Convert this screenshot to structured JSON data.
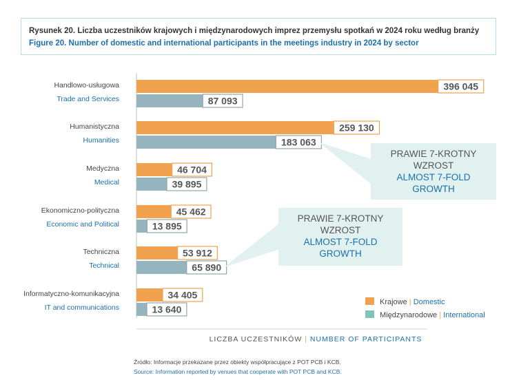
{
  "header": {
    "title_pl": "Rysunek 20. Liczba uczestników krajowych i międzynarodowych imprez przemysłu spotkań w 2024 roku według branży",
    "title_en": "Figure 20. Number of domestic and international participants in the meetings industry in 2024 by sector"
  },
  "colors": {
    "domestic": "#f0a24e",
    "international": "#96b4bd",
    "domestic_label_border": "#f0a24e",
    "international_label_border": "#8fa7ae",
    "callout_bg": "#e1f1ef",
    "accent_blue": "#1b6fae",
    "text_gray": "#444444"
  },
  "chart_data": {
    "type": "bar",
    "orientation": "horizontal",
    "categories": [
      {
        "pl": "Handlowo-usługowa",
        "en": "Trade and Services"
      },
      {
        "pl": "Humanistyczna",
        "en": "Humanities"
      },
      {
        "pl": "Medyczna",
        "en": "Medical"
      },
      {
        "pl": "Ekonomiczno-polityczna",
        "en": "Economic and Political"
      },
      {
        "pl": "Techniczna",
        "en": "Technical"
      },
      {
        "pl": "Informatyczno-komunikacyjna",
        "en": "IT and communications"
      }
    ],
    "series": [
      {
        "name_pl": "Krajowe",
        "name_en": "Domestic",
        "values": [
          396045,
          259130,
          46704,
          45462,
          53912,
          34405
        ],
        "labels": [
          "396 045",
          "259 130",
          "46 704",
          "45 462",
          "53 912",
          "34 405"
        ]
      },
      {
        "name_pl": "Międzynarodowe",
        "name_en": "International",
        "values": [
          87093,
          183063,
          39895,
          13895,
          65890,
          13640
        ],
        "labels": [
          "87 093",
          "183 063",
          "39 895",
          "13 895",
          "65 890",
          "13 640"
        ]
      }
    ],
    "xlim": [
      0,
      400000
    ],
    "xlabel_pl": "LICZBA UCZESTNIKÓW",
    "xlabel_en": "NUMBER OF PARTICIPANTS",
    "legend_position": "bottom-right",
    "annotations": [
      {
        "target_category": 1,
        "target_series": 1,
        "line1": "PRAWIE 7-KROTNY",
        "line2": "WZROST",
        "line3": "ALMOST 7-FOLD",
        "line4": "GROWTH"
      },
      {
        "target_category": 4,
        "target_series": 1,
        "line1": "PRAWIE 7-KROTNY",
        "line2": "WZROST",
        "line3": "ALMOST 7-FOLD",
        "line4": "GROWTH"
      }
    ]
  },
  "footer": {
    "source_pl": "Źródło: Informacje przekazane przez obiekty współpracujące z POT PCB i KCB.",
    "source_en": "Source: Information reported by venues that cooperate with POT PCB and KCB."
  }
}
